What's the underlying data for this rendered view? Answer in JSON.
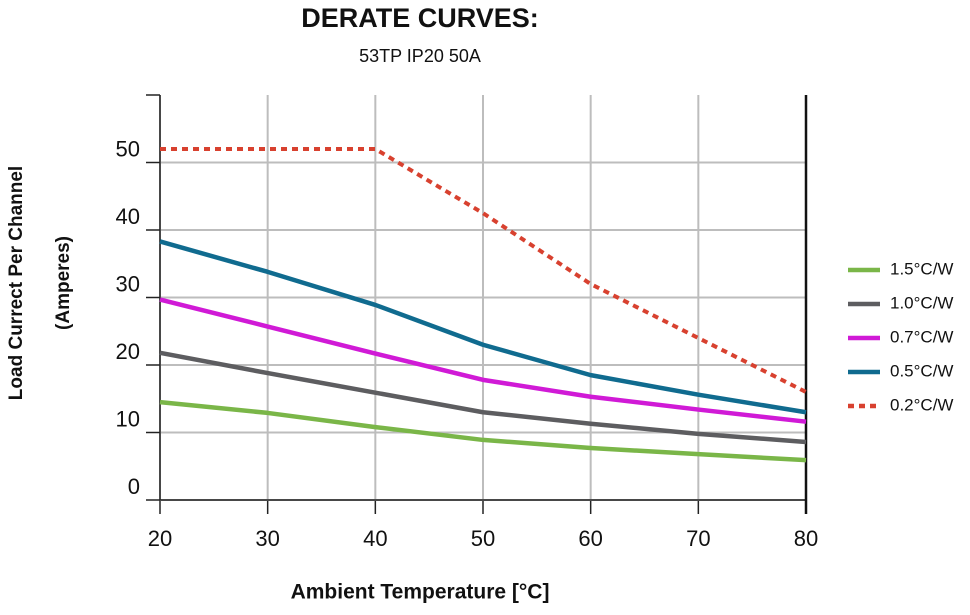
{
  "chart_data": {
    "type": "line",
    "title": "DERATE CURVES:",
    "subtitle": "53TP IP20 50A",
    "xlabel": "Ambient Temperature [°C]",
    "ylabel": [
      "Load Currect Per Channel",
      "(Amperes)"
    ],
    "x": [
      20,
      30,
      40,
      50,
      60,
      70,
      80
    ],
    "xlim": [
      20,
      80
    ],
    "xticks": [
      20,
      30,
      40,
      50,
      60,
      70,
      80
    ],
    "ylim": [
      0,
      60
    ],
    "yticks": [
      0,
      10,
      20,
      30,
      40,
      50
    ],
    "grid": true,
    "legend": "right",
    "series": [
      {
        "name": "1.5°C/W",
        "color": "#7ab648",
        "values": [
          14.5,
          12.9,
          10.8,
          8.9,
          7.7,
          6.8,
          5.9
        ]
      },
      {
        "name": "1.0°C/W",
        "color": "#5d5d60",
        "values": [
          21.8,
          18.8,
          15.9,
          13,
          11.3,
          9.8,
          8.6
        ]
      },
      {
        "name": "0.7°C/W",
        "color": "#d01ad6",
        "values": [
          29.7,
          25.7,
          21.7,
          17.8,
          15.3,
          13.4,
          11.6
        ]
      },
      {
        "name": "0.5°C/W",
        "color": "#106b8f",
        "values": [
          38.3,
          33.8,
          28.9,
          23,
          18.5,
          15.6,
          13
        ]
      },
      {
        "name": "0.2°C/W",
        "color": "#d8412f",
        "dashed": true,
        "values": [
          52,
          52,
          52,
          42.5,
          32,
          24,
          16
        ]
      }
    ]
  }
}
